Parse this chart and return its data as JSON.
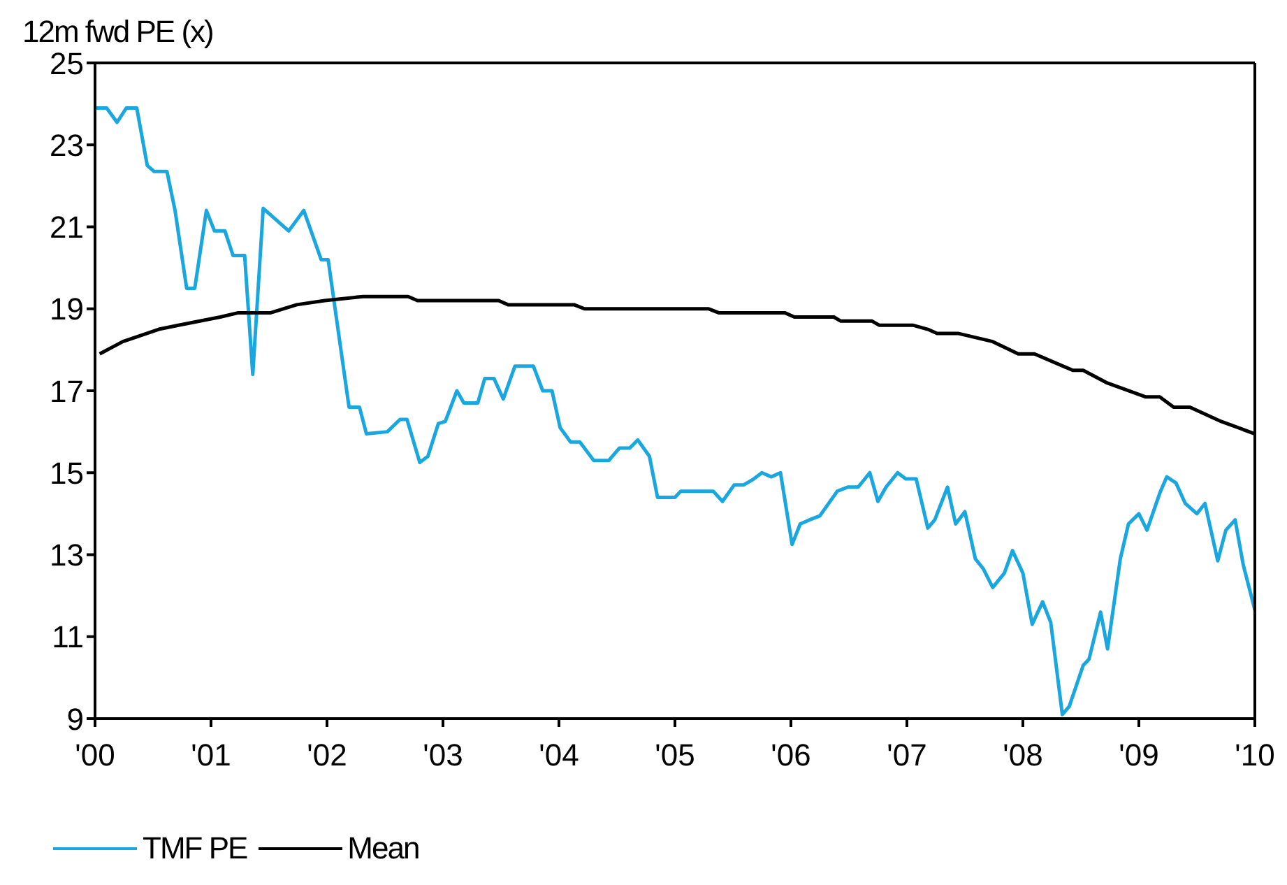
{
  "chart_data": {
    "type": "line",
    "ylabel": "12m fwd PE (x)",
    "xlim": [
      2000,
      2010
    ],
    "xticks": [
      {
        "value": 2000,
        "label": "'00"
      },
      {
        "value": 2001,
        "label": "'01"
      },
      {
        "value": 2002,
        "label": "'02"
      },
      {
        "value": 2003,
        "label": "'03"
      },
      {
        "value": 2004,
        "label": "'04"
      },
      {
        "value": 2005,
        "label": "'05"
      },
      {
        "value": 2006,
        "label": "'06"
      },
      {
        "value": 2007,
        "label": "'07"
      },
      {
        "value": 2008,
        "label": "'08"
      },
      {
        "value": 2009,
        "label": "'09"
      },
      {
        "value": 2010,
        "label": "'10"
      }
    ],
    "ylim": [
      9,
      25
    ],
    "yticks": [
      9,
      11,
      13,
      15,
      17,
      19,
      21,
      23,
      25
    ],
    "legend": "bottom left",
    "marker": "none",
    "line_style": "solid",
    "series": [
      {
        "name": "TMF PE",
        "color": "#1aa7e0",
        "x": [
          2000.0,
          2000.1,
          2000.19,
          2000.27,
          2000.36,
          2000.45,
          2000.51,
          2000.62,
          2000.69,
          2000.79,
          2000.86,
          2000.96,
          2001.03,
          2001.12,
          2001.19,
          2001.29,
          2001.36,
          2001.45,
          2001.67,
          2001.8,
          2001.95,
          2002.01,
          2002.19,
          2002.28,
          2002.34,
          2002.52,
          2002.63,
          2002.69,
          2002.8,
          2002.87,
          2002.96,
          2003.02,
          2003.12,
          2003.18,
          2003.3,
          2003.36,
          2003.44,
          2003.52,
          2003.62,
          2003.78,
          2003.86,
          2003.94,
          2004.01,
          2004.1,
          2004.18,
          2004.3,
          2004.43,
          2004.52,
          2004.61,
          2004.68,
          2004.78,
          2004.85,
          2005.0,
          2005.05,
          2005.33,
          2005.41,
          2005.51,
          2005.59,
          2005.68,
          2005.75,
          2005.83,
          2005.91,
          2006.01,
          2006.08,
          2006.16,
          2006.25,
          2006.4,
          2006.49,
          2006.58,
          2006.68,
          2006.75,
          2006.82,
          2006.92,
          2006.99,
          2007.08,
          2007.18,
          2007.24,
          2007.35,
          2007.42,
          2007.5,
          2007.59,
          2007.66,
          2007.74,
          2007.84,
          2007.91,
          2008.0,
          2008.08,
          2008.17,
          2008.24,
          2008.34,
          2008.4,
          2008.52,
          2008.57,
          2008.67,
          2008.73,
          2008.84,
          2008.91,
          2009.0,
          2009.07,
          2009.18,
          2009.24,
          2009.32,
          2009.4,
          2009.5,
          2009.57,
          2009.68,
          2009.75,
          2009.83,
          2009.9,
          2010.0
        ],
        "values": [
          23.9,
          23.9,
          23.55,
          23.9,
          23.9,
          22.5,
          22.35,
          22.35,
          21.4,
          19.5,
          19.5,
          21.4,
          20.9,
          20.9,
          20.3,
          20.3,
          17.4,
          21.45,
          20.9,
          21.4,
          20.2,
          20.2,
          16.6,
          16.6,
          15.95,
          16.0,
          16.3,
          16.3,
          15.25,
          15.4,
          16.2,
          16.25,
          17.0,
          16.7,
          16.7,
          17.3,
          17.3,
          16.8,
          17.6,
          17.6,
          17.0,
          17.0,
          16.1,
          15.75,
          15.75,
          15.3,
          15.3,
          15.6,
          15.6,
          15.8,
          15.4,
          14.4,
          14.4,
          14.55,
          14.55,
          14.3,
          14.7,
          14.7,
          14.85,
          15.0,
          14.9,
          15.0,
          13.25,
          13.75,
          13.85,
          13.95,
          14.55,
          14.65,
          14.65,
          15.0,
          14.3,
          14.65,
          15.0,
          14.85,
          14.85,
          13.65,
          13.85,
          14.65,
          13.75,
          14.05,
          12.9,
          12.65,
          12.2,
          12.55,
          13.1,
          12.55,
          11.3,
          11.85,
          11.35,
          9.1,
          9.3,
          10.3,
          10.45,
          11.6,
          10.7,
          12.9,
          13.75,
          14.0,
          13.6,
          14.5,
          14.9,
          14.75,
          14.25,
          14.0,
          14.25,
          12.85,
          13.6,
          13.85,
          12.75,
          11.65
        ]
      },
      {
        "name": "Mean",
        "color": "#000000",
        "x": [
          2000.04,
          2000.24,
          2000.55,
          2000.72,
          2001.08,
          2001.23,
          2001.51,
          2001.74,
          2001.98,
          2002.31,
          2002.7,
          2002.78,
          2003.48,
          2003.56,
          2004.13,
          2004.22,
          2005.29,
          2005.38,
          2005.95,
          2006.03,
          2006.37,
          2006.43,
          2006.7,
          2006.76,
          2007.05,
          2007.18,
          2007.26,
          2007.44,
          2007.74,
          2007.96,
          2008.1,
          2008.43,
          2008.52,
          2008.72,
          2009.06,
          2009.18,
          2009.3,
          2009.44,
          2009.71,
          2010.0
        ],
        "values": [
          17.9,
          18.2,
          18.5,
          18.6,
          18.8,
          18.9,
          18.9,
          19.1,
          19.2,
          19.3,
          19.3,
          19.2,
          19.2,
          19.1,
          19.1,
          19.0,
          19.0,
          18.9,
          18.9,
          18.8,
          18.8,
          18.7,
          18.7,
          18.6,
          18.6,
          18.5,
          18.4,
          18.4,
          18.2,
          17.9,
          17.9,
          17.5,
          17.5,
          17.2,
          16.85,
          16.85,
          16.6,
          16.6,
          16.25,
          15.95
        ]
      }
    ]
  }
}
